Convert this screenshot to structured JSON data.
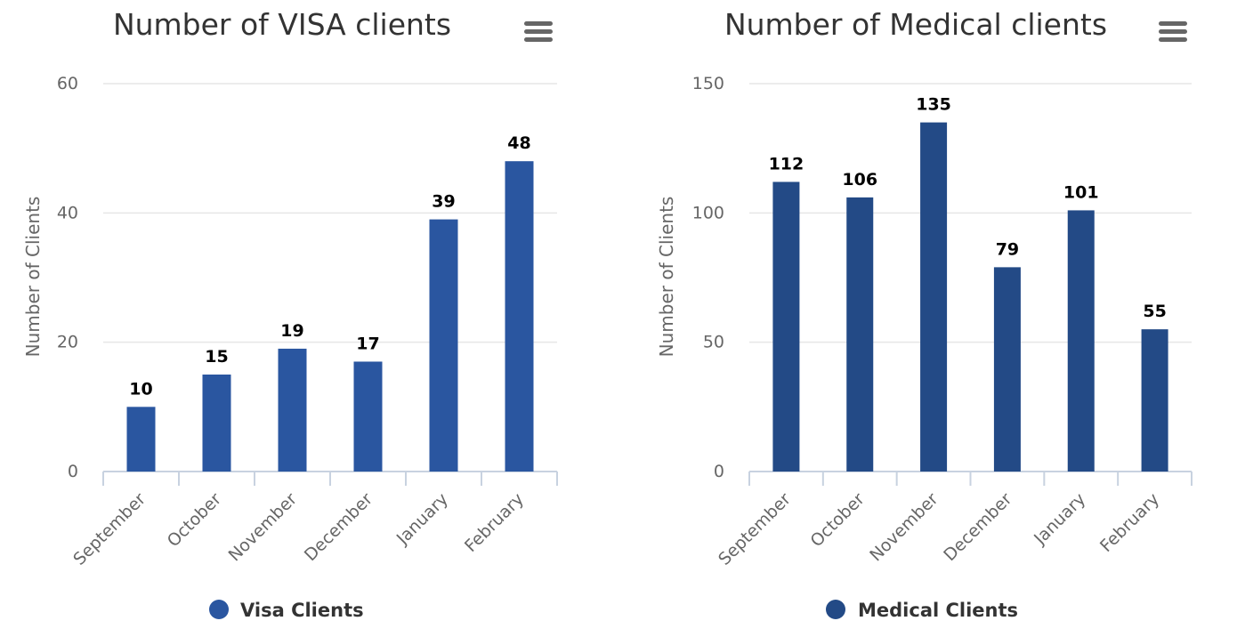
{
  "chart_data": [
    {
      "type": "bar",
      "title": "Number of VISA clients",
      "categories": [
        "September",
        "October",
        "November",
        "December",
        "January",
        "February"
      ],
      "series": [
        {
          "name": "Visa Clients",
          "values": [
            10,
            15,
            19,
            17,
            39,
            48
          ],
          "color": "#2a56a0"
        }
      ],
      "xlabel": "",
      "ylabel": "Number of Clients",
      "ylim": [
        0,
        60
      ],
      "yticks": [
        0,
        20,
        40,
        60
      ],
      "grid": true,
      "legend": "bottom-center",
      "menu_icon": "hamburger-menu-icon"
    },
    {
      "type": "bar",
      "title": "Number of Medical clients",
      "categories": [
        "September",
        "October",
        "November",
        "December",
        "January",
        "February"
      ],
      "series": [
        {
          "name": "Medical Clients",
          "values": [
            112,
            106,
            135,
            79,
            101,
            55
          ],
          "color": "#234a86"
        }
      ],
      "xlabel": "",
      "ylabel": "Number of Clients",
      "ylim": [
        0,
        150
      ],
      "yticks": [
        0,
        50,
        100,
        150
      ],
      "grid": true,
      "legend": "bottom-center",
      "menu_icon": "hamburger-menu-icon"
    }
  ]
}
